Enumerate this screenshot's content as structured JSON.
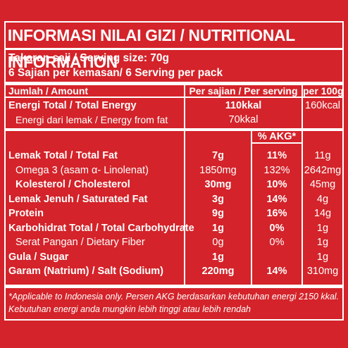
{
  "title": "INFORMASI NILAI GIZI / NUTRITIONAL INFORMATION",
  "serving_size": "Takaran saji / Serving size: 70g",
  "servings_per_pack": "6 Sajian per kemasan/ 6 Serving per pack",
  "header": {
    "amount": "Jumlah / Amount",
    "per_serving": "Per sajian / Per serving",
    "per_100g": "per 100g"
  },
  "energy": {
    "label": "Energi Total / Total Energy",
    "per_serving": "110kkal",
    "per_100g": "160kcal"
  },
  "energy_fat": {
    "label": "Energi dari lemak / Energy from fat",
    "per_serving": "70kkal"
  },
  "akg_header": "% AKG*",
  "rows": [
    {
      "label": "Lemak Total / Total Fat",
      "amount": "7g",
      "akg": "11%",
      "per100": "11g",
      "bold": true,
      "indent": false
    },
    {
      "label": "Omega 3 (asam α- Linolenat)",
      "amount": "1850mg",
      "akg": "132%",
      "per100": "2642mg",
      "bold": false,
      "indent": true
    },
    {
      "label": "Kolesterol / Cholesterol",
      "amount": "30mg",
      "akg": "10%",
      "per100": "45mg",
      "bold": true,
      "indent": true
    },
    {
      "label": "Lemak Jenuh / Saturated Fat",
      "amount": "3g",
      "akg": "14%",
      "per100": "4g",
      "bold": true,
      "indent": false
    },
    {
      "label": "Protein",
      "amount": "9g",
      "akg": "16%",
      "per100": "14g",
      "bold": true,
      "indent": false
    },
    {
      "label": "Karbohidrat Total / Total Carbohydrate",
      "amount": "1g",
      "akg": "0%",
      "per100": "1g",
      "bold": true,
      "indent": false
    },
    {
      "label": "Serat Pangan / Dietary Fiber",
      "amount": "0g",
      "akg": "0%",
      "per100": "1g",
      "bold": false,
      "indent": true
    },
    {
      "label": "Gula / Sugar",
      "amount": "1g",
      "akg": "",
      "per100": "1g",
      "bold": true,
      "indent": false
    },
    {
      "label": "Garam (Natrium) / Salt (Sodium)",
      "amount": "220mg",
      "akg": "14%",
      "per100": "310mg",
      "bold": true,
      "indent": false
    }
  ],
  "footnote_1": "*Applicable to Indonesia only. Persen AKG berdasarkan kebutuhan energi 2150 kkal.",
  "footnote_2": "Kebutuhan energi anda mungkin lebih tinggi atau lebih rendah",
  "colors": {
    "background": "#d4232a",
    "text": "#ffffff"
  }
}
